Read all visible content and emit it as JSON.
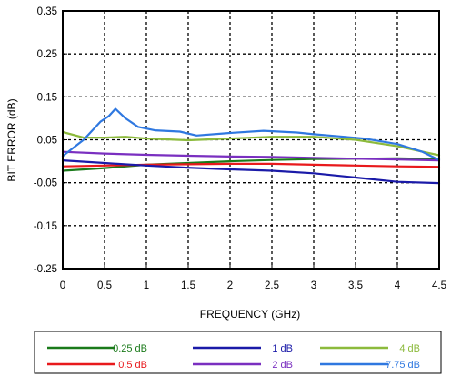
{
  "chart_data": {
    "type": "line",
    "xlabel": "FREQUENCY (GHz)",
    "ylabel": "BIT ERROR (dB)",
    "xlim": [
      0,
      4.5
    ],
    "ylim": [
      -0.25,
      0.35
    ],
    "x_ticks": [
      "0",
      "0.5",
      "1",
      "1.5",
      "2",
      "2.5",
      "3",
      "3.5",
      "4",
      "4.5"
    ],
    "y_ticks": [
      "-0.25",
      "-0.15",
      "-0.05",
      "0.05",
      "0.15",
      "0.25",
      "0.35"
    ],
    "grid": true,
    "legend_position": "bottom",
    "series": [
      {
        "name": "0.25 dB",
        "color": "#1a7a1a",
        "x": [
          0,
          0.5,
          1,
          1.5,
          2,
          2.5,
          3,
          3.5,
          4,
          4.5
        ],
        "y": [
          -0.022,
          -0.016,
          -0.008,
          -0.004,
          0.0,
          0.003,
          0.005,
          0.006,
          0.007,
          0.005
        ]
      },
      {
        "name": "0.5 dB",
        "color": "#e8191c",
        "x": [
          0,
          0.5,
          1,
          1.5,
          2,
          2.5,
          3,
          3.5,
          4,
          4.5
        ],
        "y": [
          -0.012,
          -0.01,
          -0.008,
          -0.007,
          -0.006,
          -0.006,
          -0.008,
          -0.01,
          -0.012,
          -0.013
        ]
      },
      {
        "name": "1 dB",
        "color": "#1a1aa8",
        "x": [
          0,
          0.5,
          1,
          1.5,
          2,
          2.5,
          3,
          3.5,
          4,
          4.5
        ],
        "y": [
          0.002,
          -0.004,
          -0.01,
          -0.015,
          -0.019,
          -0.022,
          -0.028,
          -0.038,
          -0.048,
          -0.051
        ]
      },
      {
        "name": "2 dB",
        "color": "#7a2fc0",
        "x": [
          0,
          0.5,
          1,
          1.5,
          2,
          2.5,
          3,
          3.5,
          4,
          4.5
        ],
        "y": [
          0.022,
          0.018,
          0.015,
          0.013,
          0.011,
          0.01,
          0.008,
          0.006,
          0.004,
          0.002
        ]
      },
      {
        "name": "4 dB",
        "color": "#8cba3c",
        "x": [
          0,
          0.25,
          0.5,
          0.75,
          1,
          1.5,
          2,
          2.5,
          3,
          3.5,
          4,
          4.5
        ],
        "y": [
          0.068,
          0.055,
          0.055,
          0.057,
          0.053,
          0.049,
          0.053,
          0.057,
          0.057,
          0.05,
          0.035,
          0.014
        ]
      },
      {
        "name": "7.75 dB",
        "color": "#2f78e0",
        "x": [
          0,
          0.25,
          0.45,
          0.55,
          0.63,
          0.75,
          0.9,
          1.1,
          1.4,
          1.6,
          2,
          2.4,
          2.8,
          3,
          3.3,
          3.6,
          4,
          4.3,
          4.5
        ],
        "y": [
          0.012,
          0.05,
          0.092,
          0.105,
          0.122,
          0.1,
          0.08,
          0.072,
          0.069,
          0.06,
          0.066,
          0.071,
          0.067,
          0.063,
          0.058,
          0.053,
          0.04,
          0.022,
          0.003
        ]
      }
    ]
  }
}
